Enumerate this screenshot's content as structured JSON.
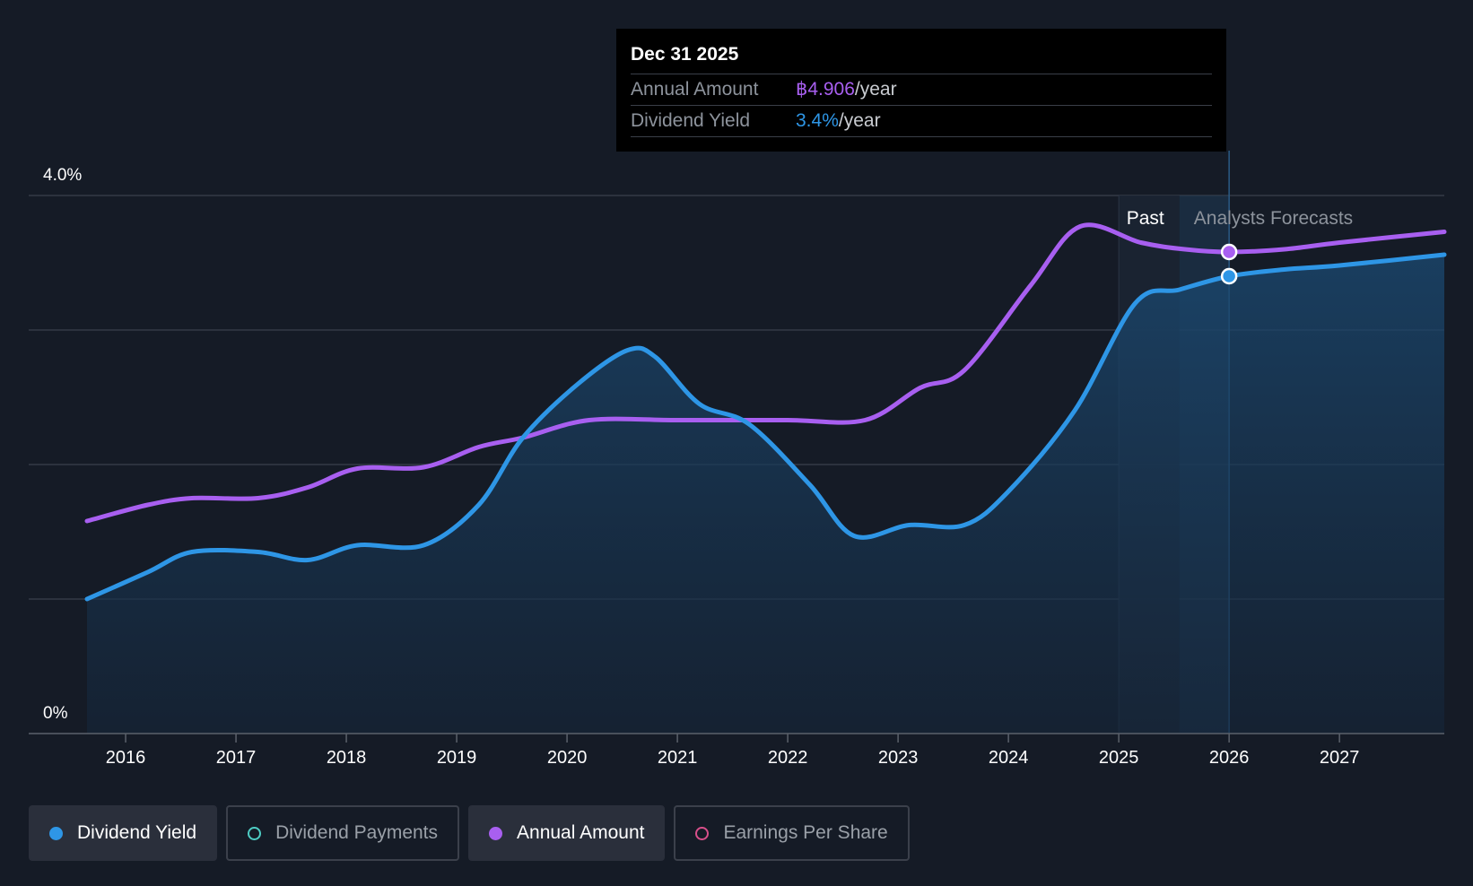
{
  "tooltip": {
    "date": "Dec 31 2025",
    "annual_label": "Annual Amount",
    "annual_value": "฿4.906",
    "annual_unit": "/year",
    "yield_label": "Dividend Yield",
    "yield_value": "3.4%",
    "yield_unit": "/year"
  },
  "legend": [
    {
      "label": "Dividend Yield",
      "color": "#2e96e6",
      "active": true,
      "filled": true
    },
    {
      "label": "Dividend Payments",
      "color": "#4ecdc4",
      "active": false,
      "filled": false
    },
    {
      "label": "Annual Amount",
      "color": "#a85ff0",
      "active": true,
      "filled": true
    },
    {
      "label": "Earnings Per Share",
      "color": "#d84f8a",
      "active": false,
      "filled": false
    }
  ],
  "chart_data": {
    "type": "line",
    "y_tick_labels": [
      "4.0%",
      "0%"
    ],
    "ylim": [
      0,
      4.0
    ],
    "xlim": [
      2015.65,
      2027.95
    ],
    "x_ticks": [
      2016,
      2017,
      2018,
      2019,
      2020,
      2021,
      2022,
      2023,
      2024,
      2025,
      2026,
      2027
    ],
    "grid": true,
    "region_labels": {
      "past": "Past",
      "forecast": "Analysts Forecasts"
    },
    "past_start": 2025.0,
    "forecast_start": 2025.55,
    "highlight_x": 2026.0,
    "colors": {
      "yield": "#2e96e6",
      "annual": "#a85ff0"
    },
    "series": [
      {
        "name": "Dividend Yield",
        "key": "yield",
        "points": [
          [
            2015.65,
            1.0
          ],
          [
            2016.2,
            1.2
          ],
          [
            2016.6,
            1.35
          ],
          [
            2017.2,
            1.35
          ],
          [
            2017.65,
            1.29
          ],
          [
            2018.1,
            1.4
          ],
          [
            2018.7,
            1.4
          ],
          [
            2019.2,
            1.7
          ],
          [
            2019.6,
            2.2
          ],
          [
            2020.1,
            2.6
          ],
          [
            2020.55,
            2.85
          ],
          [
            2020.8,
            2.8
          ],
          [
            2021.2,
            2.45
          ],
          [
            2021.65,
            2.3
          ],
          [
            2022.2,
            1.85
          ],
          [
            2022.6,
            1.47
          ],
          [
            2023.1,
            1.55
          ],
          [
            2023.6,
            1.55
          ],
          [
            2024.0,
            1.8
          ],
          [
            2024.6,
            2.4
          ],
          [
            2025.15,
            3.2
          ],
          [
            2025.55,
            3.3
          ],
          [
            2026.0,
            3.4
          ],
          [
            2026.5,
            3.45
          ],
          [
            2027.0,
            3.48
          ],
          [
            2027.95,
            3.56
          ]
        ]
      },
      {
        "name": "Annual Amount",
        "key": "annual",
        "points": [
          [
            2015.65,
            1.58
          ],
          [
            2016.2,
            1.7
          ],
          [
            2016.6,
            1.75
          ],
          [
            2017.2,
            1.75
          ],
          [
            2017.65,
            1.83
          ],
          [
            2018.1,
            1.97
          ],
          [
            2018.7,
            1.98
          ],
          [
            2019.2,
            2.13
          ],
          [
            2019.6,
            2.2
          ],
          [
            2020.2,
            2.33
          ],
          [
            2021.0,
            2.33
          ],
          [
            2022.0,
            2.33
          ],
          [
            2022.7,
            2.33
          ],
          [
            2023.2,
            2.57
          ],
          [
            2023.6,
            2.7
          ],
          [
            2024.2,
            3.33
          ],
          [
            2024.65,
            3.77
          ],
          [
            2025.2,
            3.65
          ],
          [
            2025.6,
            3.6
          ],
          [
            2026.0,
            3.58
          ],
          [
            2026.5,
            3.6
          ],
          [
            2027.0,
            3.65
          ],
          [
            2027.95,
            3.73
          ]
        ]
      }
    ]
  }
}
